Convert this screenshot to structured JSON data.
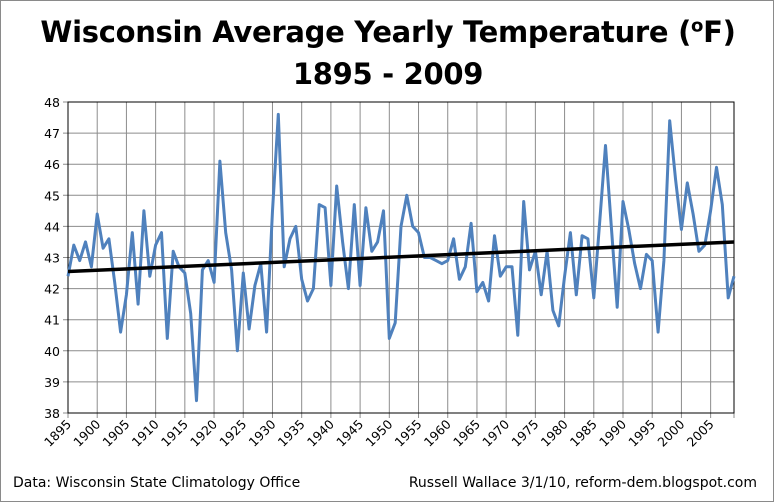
{
  "chart_data": {
    "type": "line",
    "title_line1": "Wisconsin Average Yearly Temperature (",
    "title_unit_sup": "o",
    "title_unit": "F)",
    "title_line2": "1895 - 2009",
    "xlabel": "",
    "ylabel": "",
    "xlim": [
      1895,
      2009
    ],
    "ylim": [
      38,
      48
    ],
    "yticks": [
      38,
      39,
      40,
      41,
      42,
      43,
      44,
      45,
      46,
      47,
      48
    ],
    "xticks": [
      1895,
      1900,
      1905,
      1910,
      1915,
      1920,
      1925,
      1930,
      1935,
      1940,
      1945,
      1950,
      1955,
      1960,
      1965,
      1970,
      1975,
      1980,
      1985,
      1990,
      1995,
      2000,
      2005
    ],
    "grid": true,
    "legend": "none",
    "x_start": 1895,
    "series": [
      {
        "color": "#4f81bd",
        "values": [
          42.4,
          43.4,
          42.9,
          43.5,
          42.7,
          44.4,
          43.3,
          43.6,
          42.2,
          40.6,
          41.8,
          43.8,
          41.5,
          44.5,
          42.4,
          43.4,
          43.8,
          40.4,
          43.2,
          42.7,
          42.5,
          41.2,
          38.4,
          42.6,
          42.9,
          42.2,
          46.1,
          43.8,
          42.6,
          40.0,
          42.5,
          40.7,
          42.1,
          42.8,
          40.6,
          44.5,
          47.6,
          42.7,
          43.6,
          44.0,
          42.3,
          41.6,
          42.0,
          44.7,
          44.6,
          42.1,
          45.3,
          43.5,
          42.0,
          44.7,
          42.1,
          44.6,
          43.2,
          43.5,
          44.5,
          40.4,
          40.9,
          44.0,
          45.0,
          44.0,
          43.8,
          43.0,
          43.0,
          42.9,
          42.8,
          42.9,
          43.6,
          42.3,
          42.7,
          44.1,
          41.9,
          42.2,
          41.6,
          43.7,
          42.4,
          42.7,
          42.7,
          40.5,
          44.8,
          42.6,
          43.2,
          41.8,
          43.2,
          41.3,
          40.8,
          42.4,
          43.8,
          41.8,
          43.7,
          43.6,
          41.7,
          44.1,
          46.6,
          44.0,
          41.4,
          44.8,
          43.9,
          42.8,
          42.0,
          43.1,
          42.9,
          40.6,
          42.9,
          47.4,
          45.5,
          43.9,
          45.4,
          44.4,
          43.2,
          43.4,
          44.5,
          45.9,
          44.7,
          41.7,
          42.4
        ]
      }
    ],
    "trendline": {
      "color": "#000000",
      "x": [
        1895,
        2009
      ],
      "y": [
        42.55,
        43.5
      ]
    }
  },
  "footer": {
    "source": "Data:  Wisconsin State Climatology Office",
    "credit": "Russell Wallace 3/1/10, reform-dem.blogspot.com"
  }
}
